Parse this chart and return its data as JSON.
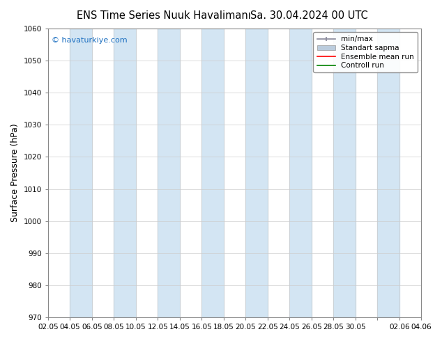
{
  "title": "ENS Time Series Nuuk Havalimanı",
  "title2": "Sa. 30.04.2024 00 UTC",
  "ylabel": "Surface Pressure (hPa)",
  "ylim": [
    970,
    1060
  ],
  "yticks": [
    970,
    980,
    990,
    1000,
    1010,
    1020,
    1030,
    1040,
    1050,
    1060
  ],
  "xtick_labels": [
    "02.05",
    "04.05",
    "06.05",
    "08.05",
    "10.05",
    "12.05",
    "14.05",
    "16.05",
    "18.05",
    "20.05",
    "22.05",
    "24.05",
    "26.05",
    "28.05",
    "30.05",
    "",
    "02.06",
    "04.06"
  ],
  "copyright_text": "© havaturkiye.com",
  "legend_entries": [
    "min/max",
    "Standart sapma",
    "Ensemble mean run",
    "Controll run"
  ],
  "bg_color": "#ffffff",
  "band_color2": "#c8dff0",
  "grid_color": "#cccccc",
  "fig_width": 6.34,
  "fig_height": 4.9,
  "dpi": 100
}
